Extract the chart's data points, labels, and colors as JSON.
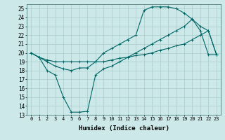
{
  "xlabel": "Humidex (Indice chaleur)",
  "xlim": [
    -0.5,
    23.5
  ],
  "ylim": [
    13,
    25.5
  ],
  "yticks": [
    13,
    14,
    15,
    16,
    17,
    18,
    19,
    20,
    21,
    22,
    23,
    24,
    25
  ],
  "xticks": [
    0,
    1,
    2,
    3,
    4,
    5,
    6,
    7,
    8,
    9,
    10,
    11,
    12,
    13,
    14,
    15,
    16,
    17,
    18,
    19,
    20,
    21,
    22,
    23
  ],
  "xtick_labels": [
    "0",
    "1",
    "2",
    "3",
    "4",
    "5",
    "6",
    "7",
    "8",
    "9",
    "10",
    "11",
    "12",
    "13",
    "14",
    "15",
    "16",
    "17",
    "18",
    "19",
    "20",
    "21",
    "22",
    "23"
  ],
  "bg_color": "#cce8e8",
  "grid_color": "#aacccc",
  "line_color": "#006666",
  "line1_x": [
    0,
    1,
    2,
    3,
    4,
    5,
    6,
    7,
    8,
    9,
    10,
    11,
    12,
    13,
    14,
    15,
    16,
    17,
    18,
    19,
    20,
    21,
    22,
    23
  ],
  "line1_y": [
    20.0,
    19.5,
    18.0,
    17.5,
    15.0,
    13.3,
    13.3,
    13.4,
    17.5,
    18.2,
    18.5,
    19.0,
    19.5,
    20.0,
    20.5,
    21.0,
    21.5,
    22.0,
    22.5,
    23.0,
    23.8,
    22.5,
    19.8,
    19.8
  ],
  "line2_x": [
    0,
    1,
    2,
    3,
    4,
    5,
    6,
    7,
    8,
    9,
    10,
    11,
    12,
    13,
    14,
    15,
    16,
    17,
    18,
    19,
    20,
    21,
    22,
    23
  ],
  "line2_y": [
    20.0,
    19.5,
    19.0,
    18.5,
    18.2,
    18.0,
    18.3,
    18.3,
    19.0,
    20.0,
    20.5,
    21.0,
    21.5,
    22.0,
    24.8,
    25.2,
    25.2,
    25.2,
    25.0,
    24.5,
    23.8,
    23.0,
    22.5,
    19.8
  ],
  "line3_x": [
    0,
    1,
    2,
    3,
    4,
    5,
    6,
    7,
    8,
    9,
    10,
    11,
    12,
    13,
    14,
    15,
    16,
    17,
    18,
    19,
    20,
    21,
    22,
    23
  ],
  "line3_y": [
    20.0,
    19.5,
    19.2,
    19.0,
    19.0,
    19.0,
    19.0,
    19.0,
    19.0,
    19.0,
    19.2,
    19.4,
    19.5,
    19.7,
    19.8,
    20.0,
    20.3,
    20.5,
    20.8,
    21.0,
    21.5,
    22.0,
    22.5,
    19.8
  ]
}
